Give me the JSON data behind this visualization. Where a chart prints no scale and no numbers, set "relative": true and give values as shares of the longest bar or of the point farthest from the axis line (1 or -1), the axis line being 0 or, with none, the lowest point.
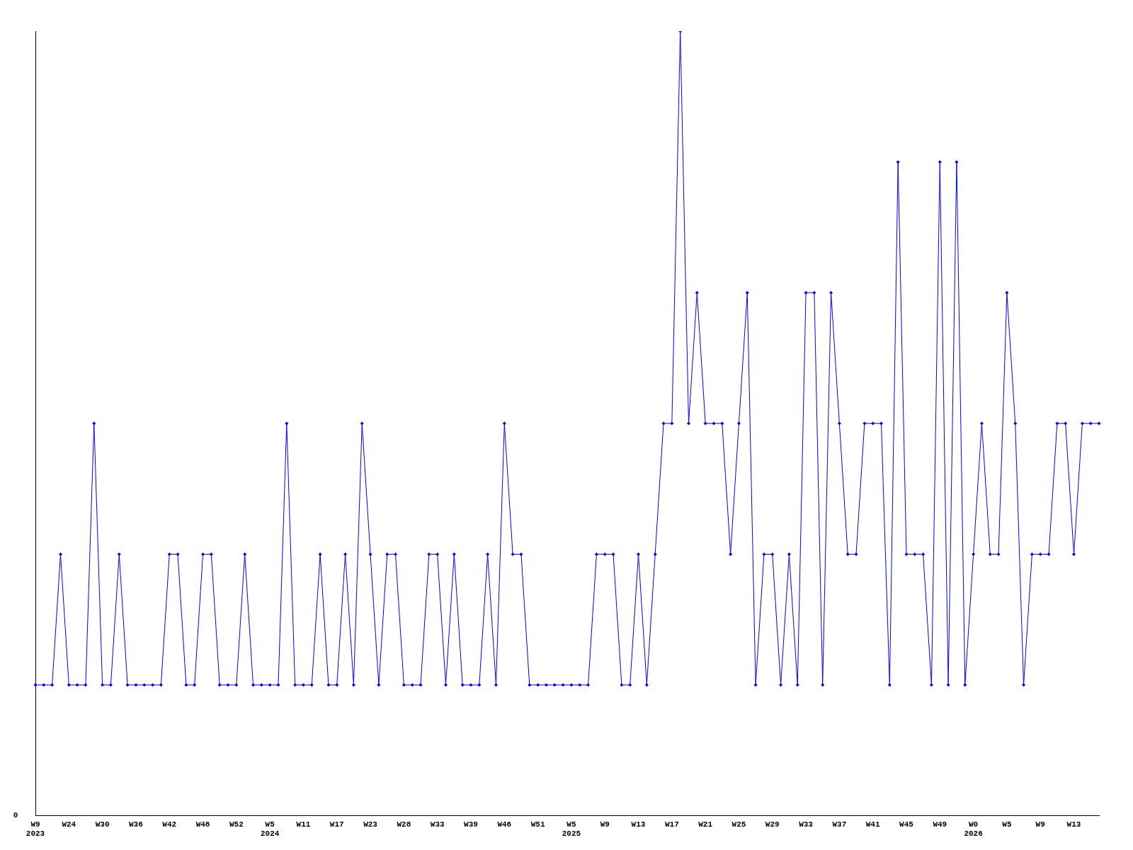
{
  "chart_data": {
    "type": "line",
    "relative": true,
    "marker": "diamond",
    "line_style": "solid",
    "grid": false,
    "legend": false,
    "tick_labels": "x",
    "categories": [
      "W9\n2023",
      null,
      null,
      null,
      "W24",
      null,
      null,
      null,
      "W30",
      null,
      null,
      null,
      "W36",
      null,
      null,
      null,
      "W42",
      null,
      null,
      null,
      "W48",
      null,
      null,
      null,
      "W52",
      null,
      null,
      null,
      "W5\n2024",
      null,
      null,
      null,
      "W11",
      null,
      null,
      null,
      "W17",
      null,
      null,
      null,
      "W23",
      null,
      null,
      null,
      "W28",
      null,
      null,
      null,
      "W33",
      null,
      null,
      null,
      "W39",
      null,
      null,
      null,
      "W46",
      null,
      null,
      null,
      "W51",
      null,
      null,
      null,
      "W5\n2025",
      null,
      null,
      null,
      "W9",
      null,
      null,
      null,
      "W13",
      null,
      null,
      null,
      "W17",
      null,
      null,
      null,
      "W21",
      null,
      null,
      null,
      "W25",
      null,
      null,
      null,
      "W29",
      null,
      null,
      null,
      "W33",
      null,
      null,
      null,
      "W37",
      null,
      null,
      null,
      "W41",
      null,
      null,
      null,
      "W45",
      null,
      null,
      null,
      "W49",
      null,
      null,
      null,
      "W0\n2026",
      null,
      null,
      null,
      "W5",
      null,
      null,
      null,
      "W9",
      null,
      null,
      null,
      "W13",
      null,
      null,
      null
    ],
    "series": [
      {
        "color": "#0000ff",
        "values": [
          0.1667,
          0.1667,
          0.1667,
          0.3333,
          0.1667,
          0.1667,
          0.1667,
          0.5,
          0.1667,
          0.1667,
          0.3333,
          0.1667,
          0.1667,
          0.1667,
          0.1667,
          0.1667,
          0.3333,
          0.3333,
          0.1667,
          0.1667,
          0.3333,
          0.3333,
          0.1667,
          0.1667,
          0.1667,
          0.3333,
          0.1667,
          0.1667,
          0.1667,
          0.1667,
          0.5,
          0.1667,
          0.1667,
          0.1667,
          0.3333,
          0.1667,
          0.1667,
          0.3333,
          0.1667,
          0.5,
          0.3333,
          0.1667,
          0.3333,
          0.3333,
          0.1667,
          0.1667,
          0.1667,
          0.3333,
          0.3333,
          0.1667,
          0.3333,
          0.1667,
          0.1667,
          0.1667,
          0.3333,
          0.1667,
          0.5,
          0.3333,
          0.3333,
          0.1667,
          0.1667,
          0.1667,
          0.1667,
          0.1667,
          0.1667,
          0.1667,
          0.1667,
          0.3333,
          0.3333,
          0.3333,
          0.1667,
          0.1667,
          0.3333,
          0.1667,
          0.3333,
          0.5,
          0.5,
          1,
          0.5,
          0.6667,
          0.5,
          0.5,
          0.5,
          0.3333,
          0.5,
          0.6667,
          0.1667,
          0.3333,
          0.3333,
          0.1667,
          0.3333,
          0.1667,
          0.6667,
          0.6667,
          0.1667,
          0.6667,
          0.5,
          0.3333,
          0.3333,
          0.5,
          0.5,
          0.5,
          0.1667,
          0.8333,
          0.3333,
          0.3333,
          0.3333,
          0.1667,
          0.8333,
          0.1667,
          0.8333,
          0.1667,
          0.3333,
          0.5,
          0.3333,
          0.3333,
          0.6667,
          0.5,
          0.1667,
          0.3333,
          0.3333,
          0.3333,
          0.5,
          0.5,
          0.3333,
          0.5,
          0.5,
          0.5
        ]
      }
    ],
    "annotations": [
      "0"
    ]
  }
}
